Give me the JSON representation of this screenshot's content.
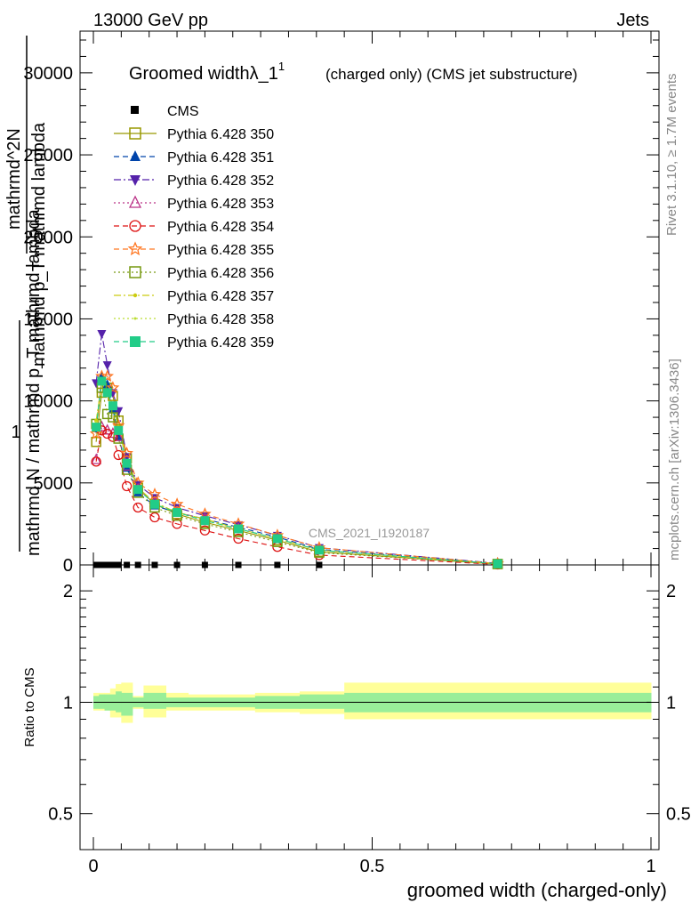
{
  "header": {
    "left": "13000 GeV pp",
    "right": "Jets"
  },
  "side_labels": {
    "rivet": "Rivet 3.1.10, ≥ 1.7M events",
    "mcplots": "mcplots.cern.ch [arXiv:1306.3436]"
  },
  "watermark": "CMS_2021_I1920187",
  "colors": {
    "cms": "#000000",
    "p350": "#999900",
    "p351": "#0044aa",
    "p352": "#5522aa",
    "p353": "#bb3388",
    "p354": "#dd1111",
    "p355": "#ff7722",
    "p356": "#779911",
    "p357": "#cccc11",
    "p358": "#bbdd33",
    "p359": "#22cc88",
    "band_stat": "#99ee99",
    "band_total": "#ffff99"
  },
  "chart_data": [
    {
      "type": "line",
      "title": "Groomed widthλ_1",
      "title_superscript": "1",
      "subtitle": "(charged only) (CMS jet substructure)",
      "ylabel_lines": [
        "1",
        "mathrmd N / mathrmd p_T mathrmd lambda",
        "mathrmd^2N",
        "mathrmd p_T mathrmd lambda"
      ],
      "xlim": [
        0,
        1
      ],
      "ylim": [
        0,
        32500
      ],
      "ytick_values": [
        0,
        5000,
        10000,
        15000,
        20000,
        25000,
        30000
      ],
      "ytick_labels": [
        "0",
        "5000",
        "10000",
        "15000",
        "20000",
        "25000",
        "30000"
      ],
      "x": [
        0.005,
        0.015,
        0.025,
        0.035,
        0.045,
        0.06,
        0.08,
        0.11,
        0.15,
        0.2,
        0.26,
        0.33,
        0.405,
        0.725
      ],
      "series": [
        {
          "name": "CMS",
          "style": "cms",
          "color": "#000000",
          "values": [
            0,
            0,
            0,
            0,
            0,
            0,
            0,
            0,
            0,
            0,
            0,
            0,
            0,
            0
          ]
        },
        {
          "name": "Pythia 6.428 350",
          "style": "solid",
          "marker": "square-open",
          "color": "#999900",
          "values": [
            7500,
            10500,
            10800,
            10300,
            8800,
            6500,
            4700,
            3700,
            3100,
            2600,
            2100,
            1500,
            800,
            50
          ]
        },
        {
          "name": "Pythia 6.428 351",
          "style": "dashed",
          "marker": "triangle-up",
          "color": "#0044aa",
          "values": [
            8300,
            11500,
            11000,
            9500,
            7800,
            5900,
            4400,
            3600,
            3200,
            2800,
            2300,
            1700,
            950,
            80
          ]
        },
        {
          "name": "Pythia 6.428 352",
          "style": "dashdot",
          "marker": "triangle-down",
          "color": "#5522aa",
          "values": [
            11100,
            14100,
            12200,
            10500,
            9400,
            6600,
            4900,
            4100,
            3500,
            3000,
            2450,
            1800,
            1050,
            100
          ]
        },
        {
          "name": "Pythia 6.428 353",
          "style": "dotted",
          "marker": "triangle-open",
          "color": "#bb3388",
          "values": [
            6400,
            8400,
            8200,
            8000,
            7800,
            6000,
            4600,
            3800,
            3200,
            2800,
            2200,
            1600,
            900,
            80
          ]
        },
        {
          "name": "Pythia 6.428 354",
          "style": "dashed",
          "marker": "circle-open",
          "color": "#dd1111",
          "values": [
            6300,
            8200,
            8000,
            7800,
            6700,
            4800,
            3500,
            2900,
            2500,
            2100,
            1600,
            1100,
            600,
            30
          ]
        },
        {
          "name": "Pythia 6.428 355",
          "style": "dashed",
          "marker": "star",
          "color": "#ff7722",
          "values": [
            8000,
            11500,
            11500,
            10800,
            8500,
            6800,
            5000,
            4300,
            3700,
            3100,
            2500,
            1800,
            1050,
            80
          ]
        },
        {
          "name": "Pythia 6.428 356",
          "style": "dotted",
          "marker": "square-open",
          "color": "#779911",
          "values": [
            8600,
            10800,
            9200,
            9000,
            7700,
            5800,
            4400,
            3500,
            3000,
            2500,
            2000,
            1400,
            750,
            60
          ]
        },
        {
          "name": "Pythia 6.428 357",
          "style": "dashdot",
          "marker": "dot",
          "color": "#cccc11",
          "values": [
            8800,
            11100,
            10400,
            9800,
            8400,
            6300,
            4700,
            3800,
            3200,
            2800,
            2200,
            1600,
            900,
            70
          ]
        },
        {
          "name": "Pythia 6.428 358",
          "style": "dotted",
          "marker": "dot-small",
          "color": "#bbdd33",
          "values": [
            8700,
            11000,
            10300,
            9700,
            8300,
            6300,
            4700,
            3800,
            3200,
            2700,
            2200,
            1600,
            900,
            70
          ]
        },
        {
          "name": "Pythia 6.428 359",
          "style": "dashed",
          "marker": "square-filled",
          "color": "#22cc88",
          "values": [
            8400,
            11200,
            10500,
            9700,
            8200,
            6200,
            4600,
            3700,
            3200,
            2700,
            2200,
            1600,
            900,
            70
          ]
        }
      ]
    },
    {
      "type": "area",
      "ylabel": "Ratio to CMS",
      "xlabel": "groomed width (charged-only)",
      "xlim": [
        0,
        1
      ],
      "ylim": [
        0.4,
        2.35
      ],
      "log_y": true,
      "xtick_values": [
        0,
        0.5,
        1
      ],
      "xtick_labels": [
        "0",
        "0.5",
        "1"
      ],
      "ytick_values": [
        0.5,
        1,
        2
      ],
      "ytick_labels": [
        "0.5",
        "1",
        "2"
      ],
      "bins": [
        0,
        0.01,
        0.02,
        0.03,
        0.04,
        0.05,
        0.07,
        0.09,
        0.13,
        0.17,
        0.23,
        0.29,
        0.37,
        0.45,
        1.0
      ],
      "stat_band": [
        [
          0.96,
          1.04
        ],
        [
          0.96,
          1.05
        ],
        [
          0.95,
          1.05
        ],
        [
          0.95,
          1.05
        ],
        [
          0.94,
          1.07
        ],
        [
          0.92,
          1.06
        ],
        [
          0.97,
          1.03
        ],
        [
          0.96,
          1.06
        ],
        [
          0.97,
          1.03
        ],
        [
          0.97,
          1.03
        ],
        [
          0.97,
          1.03
        ],
        [
          0.96,
          1.04
        ],
        [
          0.96,
          1.05
        ],
        [
          0.94,
          1.06
        ]
      ],
      "total_band": [
        [
          0.95,
          1.06
        ],
        [
          0.95,
          1.06
        ],
        [
          0.95,
          1.06
        ],
        [
          0.91,
          1.09
        ],
        [
          0.91,
          1.12
        ],
        [
          0.88,
          1.13
        ],
        [
          0.96,
          1.04
        ],
        [
          0.91,
          1.11
        ],
        [
          0.95,
          1.06
        ],
        [
          0.95,
          1.05
        ],
        [
          0.95,
          1.05
        ],
        [
          0.94,
          1.06
        ],
        [
          0.93,
          1.07
        ],
        [
          0.9,
          1.13
        ]
      ]
    }
  ]
}
